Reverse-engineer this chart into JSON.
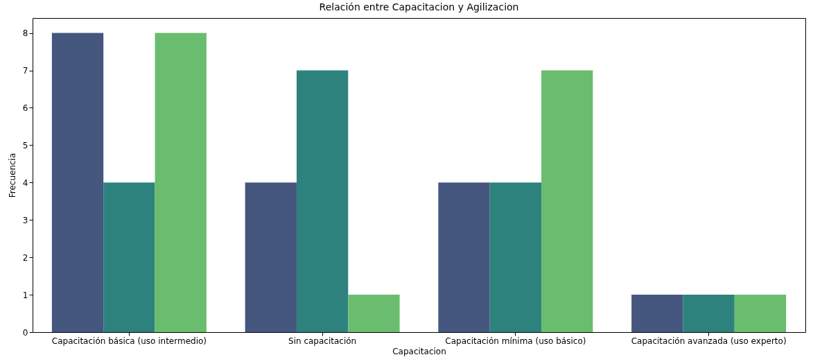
{
  "chart_data": {
    "type": "bar",
    "title": "Relación entre Capacitacion y Agilizacion",
    "xlabel": "Capacitacion",
    "ylabel": "Frecuencia",
    "categories": [
      "Capacitación básica (uso intermedio)",
      "Sin capacitación",
      "Capacitación mínima (uso básico)",
      "Capacitación avanzada (uso experto)"
    ],
    "series": [
      {
        "color": "#45567f",
        "values": [
          8,
          4,
          4,
          1
        ]
      },
      {
        "color": "#2e827e",
        "values": [
          4,
          7,
          4,
          1
        ]
      },
      {
        "color": "#6abd6e",
        "values": [
          8,
          1,
          7,
          1
        ]
      }
    ],
    "ylim": [
      0,
      8.4
    ],
    "yticks": [
      0,
      1,
      2,
      3,
      4,
      5,
      6,
      7,
      8
    ],
    "grid": false,
    "legend": false
  }
}
